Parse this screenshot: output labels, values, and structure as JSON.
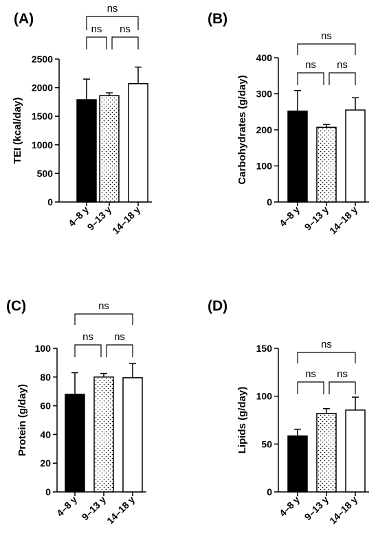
{
  "chart_data": [
    {
      "type": "bar",
      "panel_label": "(A)",
      "categories": [
        "4–8 y",
        "9–13 y",
        "14–18 y"
      ],
      "values": [
        1790,
        1860,
        2070
      ],
      "errors": [
        360,
        50,
        290
      ],
      "fills": [
        "solid-black",
        "dotted",
        "white"
      ],
      "ylabel": "TEI (kcal/day)",
      "ylim": [
        0,
        2500
      ],
      "yticks": [
        0,
        500,
        1000,
        1500,
        2000,
        2500
      ],
      "significance": [
        {
          "from": 0,
          "to": 1,
          "label": "ns"
        },
        {
          "from": 1,
          "to": 2,
          "label": "ns"
        },
        {
          "from": 0,
          "to": 2,
          "label": "ns"
        }
      ]
    },
    {
      "type": "bar",
      "panel_label": "(B)",
      "categories": [
        "4–8 y",
        "9–13 y",
        "14–18 y"
      ],
      "values": [
        252,
        207,
        255
      ],
      "errors": [
        57,
        8,
        34
      ],
      "fills": [
        "solid-black",
        "dotted",
        "white"
      ],
      "ylabel": "Carbohydrates (g/day)",
      "ylim": [
        0,
        400
      ],
      "yticks": [
        0,
        100,
        200,
        300,
        400
      ],
      "significance": [
        {
          "from": 0,
          "to": 1,
          "label": "ns"
        },
        {
          "from": 1,
          "to": 2,
          "label": "ns"
        },
        {
          "from": 0,
          "to": 2,
          "label": "ns"
        }
      ]
    },
    {
      "type": "bar",
      "panel_label": "(C)",
      "categories": [
        "4–8 y",
        "9–13 y",
        "14–18 y"
      ],
      "values": [
        68,
        80,
        79.5
      ],
      "errors": [
        15,
        2.5,
        10
      ],
      "fills": [
        "solid-black",
        "dotted",
        "white"
      ],
      "ylabel": "Protein (g/day)",
      "ylim": [
        0,
        100
      ],
      "yticks": [
        0,
        20,
        40,
        60,
        80,
        100
      ],
      "significance": [
        {
          "from": 0,
          "to": 1,
          "label": "ns"
        },
        {
          "from": 1,
          "to": 2,
          "label": "ns"
        },
        {
          "from": 0,
          "to": 2,
          "label": "ns"
        }
      ]
    },
    {
      "type": "bar",
      "panel_label": "(D)",
      "categories": [
        "4–8 y",
        "9–13 y",
        "14–18 y"
      ],
      "values": [
        58.5,
        82,
        85.5
      ],
      "errors": [
        7,
        5,
        13.5
      ],
      "fills": [
        "solid-black",
        "dotted",
        "white"
      ],
      "ylabel": "Lipids (g/day)",
      "ylim": [
        0,
        150
      ],
      "yticks": [
        0,
        50,
        100,
        150
      ],
      "significance": [
        {
          "from": 0,
          "to": 1,
          "label": "ns"
        },
        {
          "from": 1,
          "to": 2,
          "label": "ns"
        },
        {
          "from": 0,
          "to": 2,
          "label": "ns"
        }
      ]
    }
  ],
  "colors": {
    "black_bar": "#000000",
    "white_bar": "#ffffff",
    "dot": "#000000",
    "axis": "#000000"
  }
}
